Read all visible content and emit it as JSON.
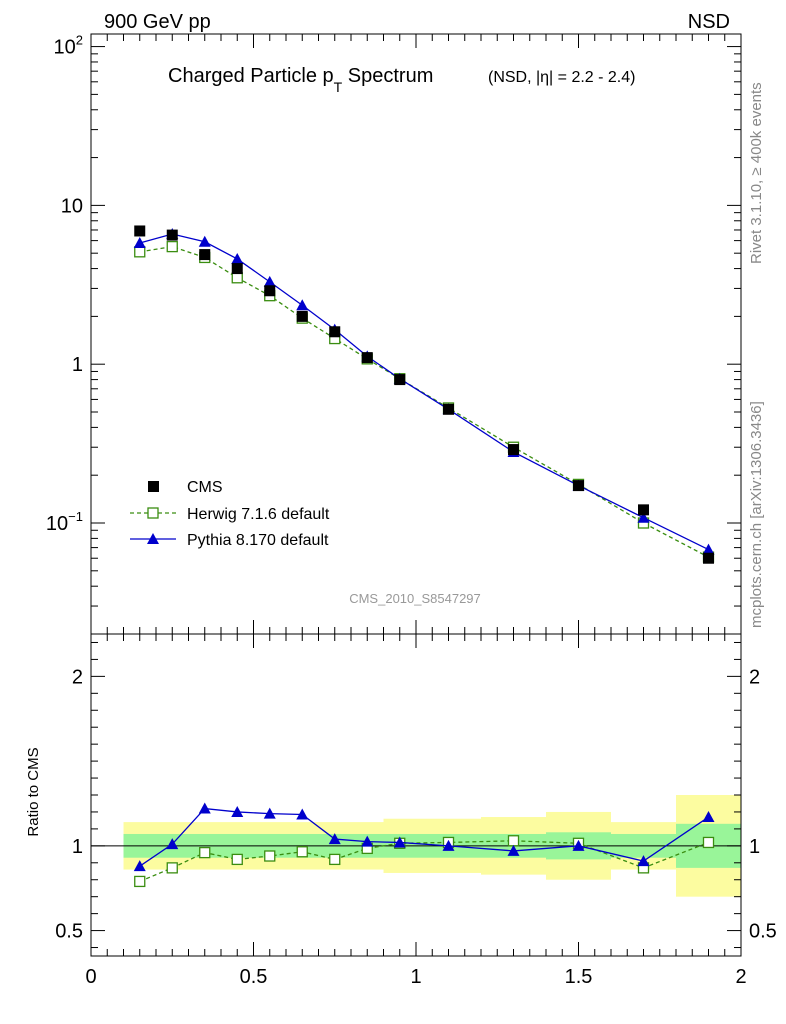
{
  "header": {
    "left": "900 GeV pp",
    "right": "NSD"
  },
  "side_labels": {
    "version": "Rivet 3.1.10, ≥ 400k events",
    "source": "mcplots.cern.ch [arXiv:1306.3436]"
  },
  "chart_data": [
    {
      "type": "scatter",
      "title": "Charged Particle p",
      "title_sub": "T",
      "title_tail": " Spectrum",
      "title_note": "(NSD, |η| = 2.2 - 2.4)",
      "watermark": "CMS_2010_S8547297",
      "yscale": "log",
      "ylim": [
        0.02,
        120
      ],
      "xlim": [
        0,
        2
      ],
      "ytick_labels": [
        "10",
        "1"
      ],
      "ytick_exp_labels": [
        {
          "base": "10",
          "exp": "2"
        },
        {
          "base": "10",
          "exp": "−1"
        }
      ],
      "legend_position": "bottom-left",
      "x": [
        0.15,
        0.25,
        0.35,
        0.45,
        0.55,
        0.65,
        0.75,
        0.85,
        0.95,
        1.1,
        1.3,
        1.5,
        1.7,
        1.9
      ],
      "series": [
        {
          "name": "CMS",
          "color": "#000000",
          "marker": "filled-square",
          "values": [
            6.9,
            6.5,
            4.9,
            4.0,
            2.9,
            2.0,
            1.6,
            1.1,
            0.8,
            0.52,
            0.29,
            0.172,
            0.121,
            0.06
          ]
        },
        {
          "name": "Herwig 7.1.6 default",
          "color": "#3a8d10",
          "marker": "open-square",
          "line": "dashed",
          "values": [
            5.1,
            5.5,
            4.7,
            3.5,
            2.7,
            1.95,
            1.45,
            1.08,
            0.81,
            0.53,
            0.3,
            0.175,
            0.1,
            0.061
          ]
        },
        {
          "name": "Pythia 8.170 default",
          "color": "#0000cc",
          "marker": "filled-triangle",
          "line": "solid",
          "values": [
            5.8,
            6.6,
            5.9,
            4.6,
            3.3,
            2.35,
            1.65,
            1.12,
            0.81,
            0.52,
            0.28,
            0.172,
            0.108,
            0.068
          ]
        }
      ]
    },
    {
      "type": "scatter",
      "ylabel": "Ratio to CMS",
      "ylim": [
        0.35,
        2.25
      ],
      "xlim": [
        0,
        2
      ],
      "yticks": [
        0.5,
        1,
        2
      ],
      "ytick_labels": [
        "0.5",
        "1",
        "2"
      ],
      "xticks": [
        0,
        0.5,
        1,
        1.5,
        2
      ],
      "xtick_labels": [
        "0",
        "0.5",
        "1",
        "1.5",
        "2"
      ],
      "bands": {
        "bins": [
          [
            0.1,
            0.2
          ],
          [
            0.2,
            0.3
          ],
          [
            0.3,
            0.4
          ],
          [
            0.4,
            0.5
          ],
          [
            0.5,
            0.6
          ],
          [
            0.6,
            0.7
          ],
          [
            0.7,
            0.8
          ],
          [
            0.8,
            0.9
          ],
          [
            0.9,
            1.0
          ],
          [
            1.0,
            1.2
          ],
          [
            1.2,
            1.4
          ],
          [
            1.4,
            1.6
          ],
          [
            1.6,
            1.8
          ],
          [
            1.8,
            2.0
          ]
        ],
        "stat_color": "#99f599",
        "total_color": "#fcfca0",
        "stat_half": [
          0.07,
          0.07,
          0.07,
          0.07,
          0.07,
          0.07,
          0.07,
          0.07,
          0.07,
          0.07,
          0.07,
          0.08,
          0.07,
          0.13
        ],
        "total_half": [
          0.14,
          0.14,
          0.14,
          0.14,
          0.14,
          0.14,
          0.14,
          0.14,
          0.16,
          0.16,
          0.17,
          0.2,
          0.14,
          0.3
        ]
      },
      "series": [
        {
          "name": "Herwig 7.1.6 default",
          "color": "#3a8d10",
          "marker": "open-square",
          "line": "dashed",
          "values": [
            0.79,
            0.87,
            0.96,
            0.92,
            0.94,
            0.965,
            0.92,
            0.985,
            1.015,
            1.02,
            1.03,
            1.015,
            0.87,
            1.02
          ]
        },
        {
          "name": "Pythia 8.170 default",
          "color": "#0000cc",
          "marker": "filled-triangle",
          "line": "solid",
          "values": [
            0.88,
            1.01,
            1.22,
            1.2,
            1.19,
            1.185,
            1.04,
            1.025,
            1.02,
            1.0,
            0.97,
            1.0,
            0.91,
            1.17
          ]
        }
      ]
    }
  ]
}
